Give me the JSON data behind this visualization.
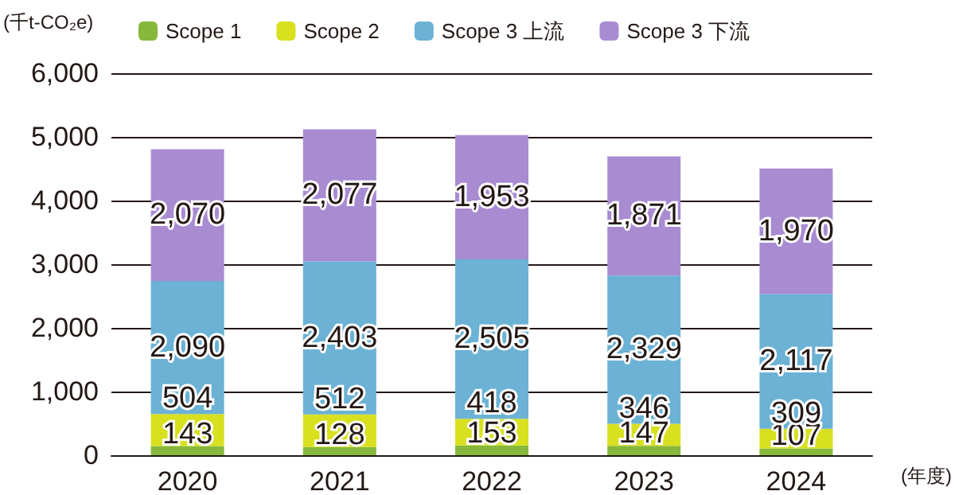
{
  "chart_data": {
    "type": "bar",
    "stacked": true,
    "ylabel": "(千t-CO₂e)",
    "xlabel": "(年度)",
    "categories": [
      "2020",
      "2021",
      "2022",
      "2023",
      "2024"
    ],
    "series": [
      {
        "name": "Scope 1",
        "color": "#86b83c",
        "values": [
          143,
          128,
          153,
          147,
          107
        ],
        "value_labels": [
          "143",
          "128",
          "153",
          "147",
          "107"
        ]
      },
      {
        "name": "Scope 2",
        "color": "#d8e01f",
        "values": [
          504,
          512,
          418,
          346,
          309
        ],
        "value_labels": [
          "504",
          "512",
          "418",
          "346",
          "309"
        ]
      },
      {
        "name": "Scope 3 上流",
        "color": "#6bb2d5",
        "values": [
          2090,
          2403,
          2505,
          2329,
          2117
        ],
        "value_labels": [
          "2,090",
          "2,403",
          "2,505",
          "2,329",
          "2,117"
        ]
      },
      {
        "name": "Scope 3 下流",
        "color": "#a98bd2",
        "values": [
          2070,
          2077,
          1953,
          1871,
          1970
        ],
        "value_labels": [
          "2,070",
          "2,077",
          "1,953",
          "1,871",
          "1,970"
        ]
      }
    ],
    "ylim": [
      0,
      6000
    ],
    "yticks": [
      0,
      {
        "value": 1000,
        "label": "1,000"
      },
      {
        "value": 2000,
        "label": "2,000"
      },
      {
        "value": 3000,
        "label": "3,000"
      },
      {
        "value": 4000,
        "label": "4,000"
      },
      {
        "value": 5000,
        "label": "5,000"
      },
      {
        "value": 6000,
        "label": "6,000"
      }
    ],
    "grid": "y",
    "legend": "top"
  }
}
